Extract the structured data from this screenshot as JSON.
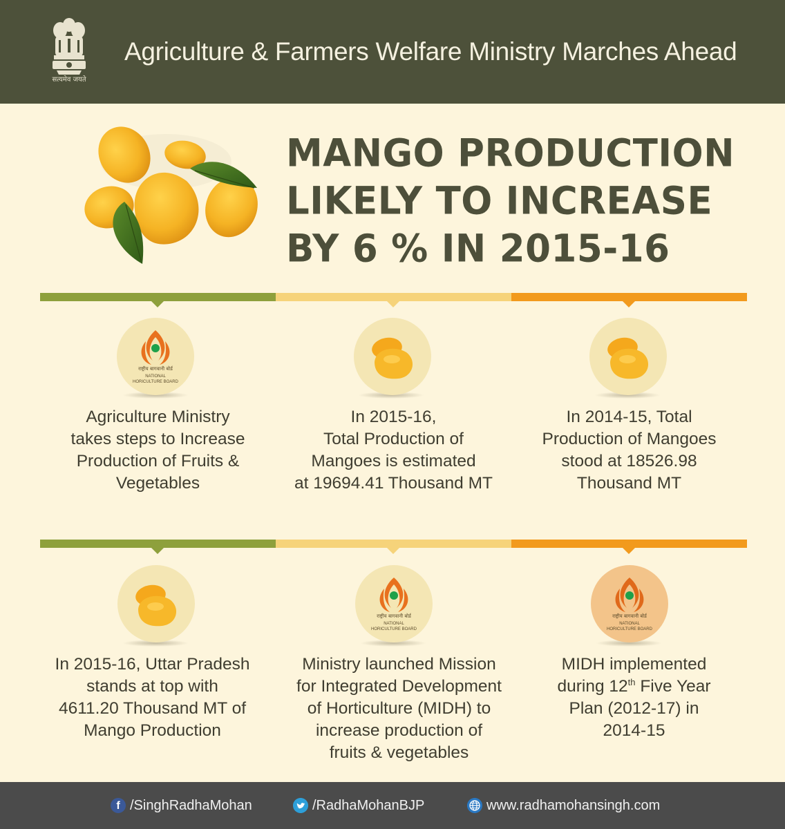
{
  "header": {
    "title": "Agriculture & Farmers Welfare Ministry Marches Ahead",
    "emblem_motto": "सत्यमेव जयते",
    "emblem_icon": "ashoka-emblem-icon"
  },
  "hero": {
    "image_icon": "mangoes-with-leaves-icon",
    "headline_lines": [
      "MANGO PRODUCTION",
      "LIKELY TO INCREASE",
      "BY 6 % IN 2015-16"
    ]
  },
  "colors": {
    "background": "#fdf5dc",
    "header": "#4d513a",
    "footer": "#4b4b4b",
    "bar_green": "#8ea03c",
    "bar_yellow": "#f6d37a",
    "bar_orange": "#f29a1d"
  },
  "nhb_logo": {
    "hindi": "राष्ट्रीय बागवानी बोर्ड",
    "english_line1": "NATIONAL",
    "english_line2": "HORICULTURE BOARD"
  },
  "cells": [
    {
      "icon": "nhb-logo-icon",
      "text_lines": [
        "Agriculture Ministry",
        "takes steps to Increase",
        "Production of Fruits &",
        "Vegetables"
      ]
    },
    {
      "icon": "mangoes-icon",
      "text_lines": [
        "In 2015-16,",
        "Total Production of",
        "Mangoes is estimated",
        "at 19694.41 Thousand MT"
      ]
    },
    {
      "icon": "mangoes-icon",
      "text_lines": [
        "In 2014-15, Total",
        "Production of Mangoes",
        "stood at 18526.98",
        "Thousand MT"
      ]
    },
    {
      "icon": "mangoes-icon",
      "text_lines": [
        "In 2015-16, Uttar Pradesh",
        "stands at top with",
        "4611.20 Thousand MT of",
        "Mango Production"
      ]
    },
    {
      "icon": "nhb-logo-icon",
      "text_lines": [
        "Ministry launched Mission",
        "for Integrated Development",
        "of Horticulture (MIDH) to",
        "increase production of",
        "fruits & vegetables"
      ]
    },
    {
      "icon": "nhb-logo-icon",
      "text_lines": [
        "MIDH implemented"
      ],
      "line2_pre": "during 12",
      "line2_sup": "th",
      "line2_post": " Five Year",
      "text_lines_after": [
        "Plan (2012-17) in",
        "2014-15"
      ]
    }
  ],
  "footer": {
    "facebook": "/SinghRadhaMohan",
    "twitter": "/RadhaMohanBJP",
    "website": "www.radhamohansingh.com",
    "facebook_icon": "facebook-icon",
    "twitter_icon": "twitter-icon",
    "globe_icon": "globe-icon"
  }
}
